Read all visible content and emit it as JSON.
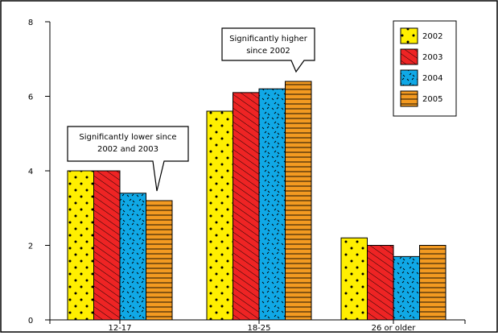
{
  "chart_data": {
    "type": "bar",
    "categories": [
      "12-17",
      "18-25",
      "26 or older"
    ],
    "series": [
      {
        "name": "2002",
        "values": [
          4.0,
          5.6,
          2.2
        ],
        "color": "#ffef00",
        "pattern": "dots"
      },
      {
        "name": "2003",
        "values": [
          4.0,
          6.1,
          2.0
        ],
        "color": "#ee2424",
        "pattern": "diagonal-hatch"
      },
      {
        "name": "2004",
        "values": [
          3.4,
          6.2,
          1.7
        ],
        "color": "#10a8e6",
        "pattern": "dashes"
      },
      {
        "name": "2005",
        "values": [
          3.2,
          6.4,
          2.0
        ],
        "color": "#f39a21",
        "pattern": "horizontal-lines"
      }
    ],
    "ylim": [
      0,
      8
    ],
    "yticks": [
      "0",
      "2",
      "4",
      "6",
      "8"
    ],
    "grid": false,
    "legend_position": "top-right",
    "annotations": [
      {
        "lines": [
          "Significantly lower since",
          "2002 and 2003"
        ],
        "category": "12-17",
        "series": "2005"
      },
      {
        "lines": [
          "Significantly higher",
          "since 2002"
        ],
        "category": "18-25",
        "series": "2005"
      }
    ]
  }
}
